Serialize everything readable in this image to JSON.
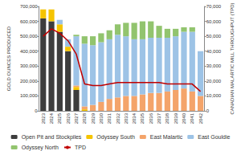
{
  "chart_data": {
    "type": "bar",
    "stacked": true,
    "grid": false,
    "legend": "bottom",
    "y_label": "GOLD OUNCES PRODUCED",
    "y2_label": "CANADIAN MALARTIC MILL THROUGHPUT (TPD)",
    "categories": [
      "2023",
      "2024",
      "2025",
      "2026",
      "2027",
      "2028",
      "2029",
      "2030",
      "2031",
      "2032",
      "2033",
      "2034",
      "2035",
      "2036",
      "2037",
      "2038",
      "2039",
      "2040",
      "2041",
      "2042"
    ],
    "ylim": [
      0,
      700000
    ],
    "yticks": [
      0,
      {
        "value": 100000,
        "label": "100,000"
      },
      {
        "value": 200000,
        "label": "200,000"
      },
      {
        "value": 300000,
        "label": "300,000"
      },
      {
        "value": 400000,
        "label": "400,000"
      },
      {
        "value": 500000,
        "label": "500,000"
      },
      {
        "value": 600000,
        "label": "600,000"
      },
      {
        "value": 700000,
        "label": "700,000"
      }
    ],
    "y2lim": [
      0,
      70000
    ],
    "y2ticks": [
      0,
      {
        "value": 10000,
        "label": "10,000"
      },
      {
        "value": 20000,
        "label": "20,000"
      },
      {
        "value": 30000,
        "label": "30,000"
      },
      {
        "value": 40000,
        "label": "40,000"
      },
      {
        "value": 50000,
        "label": "50,000"
      },
      {
        "value": 60000,
        "label": "60,000"
      },
      {
        "value": 70000,
        "label": "70,000"
      }
    ],
    "series": [
      {
        "name": "Open Pit and Stockpiles",
        "type": "bar",
        "color": "#3d3d3d",
        "values": [
          620000,
          600000,
          530000,
          400000,
          140000,
          0,
          0,
          0,
          0,
          0,
          0,
          0,
          0,
          0,
          0,
          0,
          0,
          0,
          0,
          0
        ]
      },
      {
        "name": "Odyssey South",
        "type": "bar",
        "color": "#f5c400",
        "values": [
          60000,
          80000,
          50000,
          30000,
          20000,
          10000,
          0,
          0,
          0,
          0,
          0,
          0,
          0,
          0,
          0,
          0,
          0,
          0,
          0,
          0
        ]
      },
      {
        "name": "East Malartic",
        "type": "bar",
        "color": "#f4a46a",
        "values": [
          0,
          0,
          0,
          0,
          10000,
          20000,
          40000,
          60000,
          80000,
          90000,
          100000,
          100000,
          110000,
          120000,
          120000,
          130000,
          140000,
          150000,
          130000,
          100000
        ]
      },
      {
        "name": "East Gouldie",
        "type": "bar",
        "color": "#9dc3e6",
        "values": [
          0,
          0,
          30000,
          50000,
          330000,
          420000,
          400000,
          400000,
          400000,
          420000,
          400000,
          380000,
          370000,
          370000,
          370000,
          360000,
          360000,
          380000,
          400000,
          300000
        ]
      },
      {
        "name": "Odyssey North",
        "type": "bar",
        "color": "#92c46e",
        "values": [
          0,
          0,
          0,
          0,
          10000,
          50000,
          60000,
          60000,
          60000,
          70000,
          90000,
          110000,
          120000,
          110000,
          80000,
          60000,
          50000,
          30000,
          30000,
          0
        ]
      },
      {
        "name": "TPD",
        "type": "line",
        "axis": "y2",
        "color": "#c00000",
        "marker": "none",
        "line_style": "solid",
        "values": [
          50000,
          55000,
          52000,
          47000,
          38000,
          18000,
          17000,
          17000,
          18000,
          19000,
          19000,
          19000,
          19000,
          19000,
          19000,
          18000,
          18000,
          18000,
          18000,
          13000
        ]
      }
    ]
  }
}
